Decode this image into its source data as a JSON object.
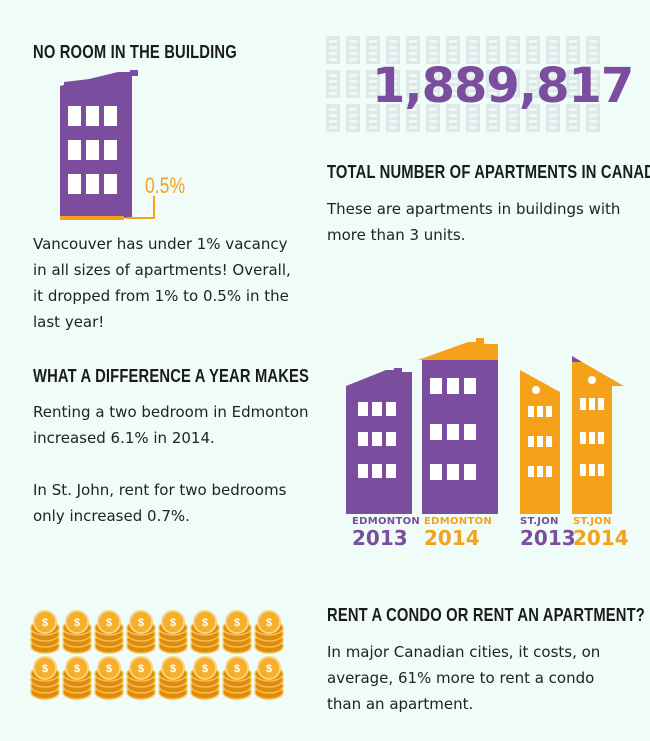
{
  "colors": {
    "background": "#effcf8",
    "purple": "#7a4d9e",
    "orange": "#f5a21a",
    "window": "#ffffff",
    "pattern": "#dde9e8"
  },
  "section1": {
    "heading": "NO ROOM IN THE BUILDING",
    "percent_label": "0.5%",
    "body_lines": [
      "Vancouver has under 1% vacancy",
      "in all sizes of apartments! Overall,",
      "it dropped from 1% to 0.5% in the",
      "last year!"
    ]
  },
  "section2": {
    "big_number": "1,889,817",
    "heading": "TOTAL NUMBER OF APARTMENTS IN CANADA",
    "body_lines": [
      "These are apartments in buildings with",
      "more than 3 units."
    ]
  },
  "section3": {
    "heading": "WHAT A DIFFERENCE A YEAR MAKES",
    "para1_lines": [
      "Renting a two bedroom in Edmonton",
      "increased 6.1% in 2014."
    ],
    "para2_lines": [
      "In St. John, rent for two bedrooms",
      "only increased 0.7%."
    ],
    "buildings": [
      {
        "city": "EDMONTON",
        "year": "2013",
        "color": "purple"
      },
      {
        "city": "EDMONTON",
        "year": "2014",
        "color": "orange"
      },
      {
        "city": "ST.JON",
        "year": "2013",
        "color": "purple"
      },
      {
        "city": "ST.JON",
        "year": "2014",
        "color": "orange"
      }
    ]
  },
  "section4": {
    "heading": "RENT A CONDO OR RENT AN APARTMENT?",
    "body_lines": [
      "In major Canadian cities, it costs, on",
      "average, 61% more to rent a condo",
      "than an apartment."
    ],
    "coin_icon": "dollar-coin-stack-icon"
  }
}
